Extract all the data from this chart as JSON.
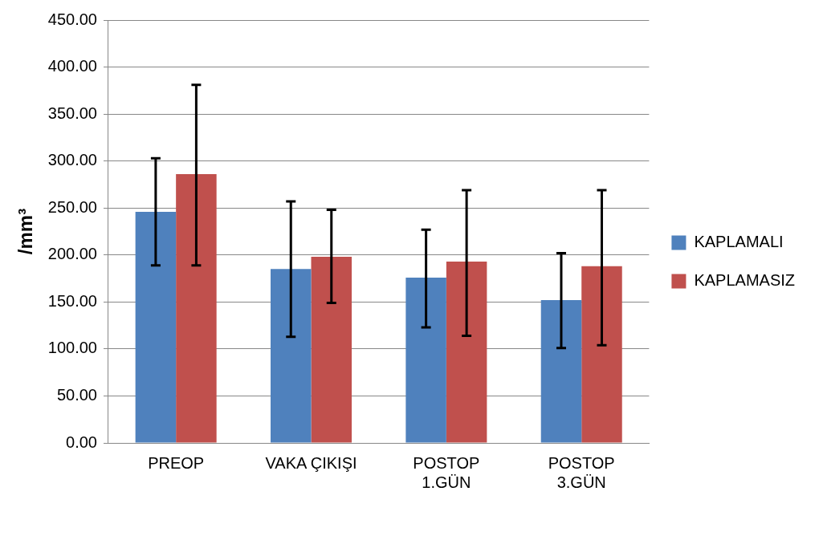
{
  "chart_data": {
    "type": "bar",
    "ylabel": "/mm³",
    "categories": [
      "PREOP",
      "VAKA ÇIKIŞI",
      "POSTOP\n1.GÜN",
      "POSTOP\n3.GÜN"
    ],
    "series": [
      {
        "name": "KAPLAMALI",
        "color": "#4f81bd",
        "values": [
          246,
          185,
          176,
          152
        ],
        "errors": [
          [
            189,
            303
          ],
          [
            113,
            257
          ],
          [
            123,
            227
          ],
          [
            101,
            202
          ]
        ]
      },
      {
        "name": "KAPLAMASIZ",
        "color": "#c0504d",
        "values": [
          286,
          198,
          193,
          188
        ],
        "errors": [
          [
            189,
            381
          ],
          [
            149,
            248
          ],
          [
            114,
            269
          ],
          [
            104,
            269
          ]
        ]
      }
    ],
    "ylim": [
      0,
      450
    ],
    "yticks": [
      {
        "value": 0,
        "label": "0.00"
      },
      {
        "value": 50,
        "label": "50.00"
      },
      {
        "value": 100,
        "label": "100.00"
      },
      {
        "value": 150,
        "label": "150.00"
      },
      {
        "value": 200,
        "label": "200.00"
      },
      {
        "value": 250,
        "label": "250.00"
      },
      {
        "value": 300,
        "label": "300.00"
      },
      {
        "value": 350,
        "label": "350.00"
      },
      {
        "value": 400,
        "label": "400.00"
      },
      {
        "value": 450,
        "label": "450.00"
      }
    ],
    "grid": "y",
    "legend": "right"
  }
}
